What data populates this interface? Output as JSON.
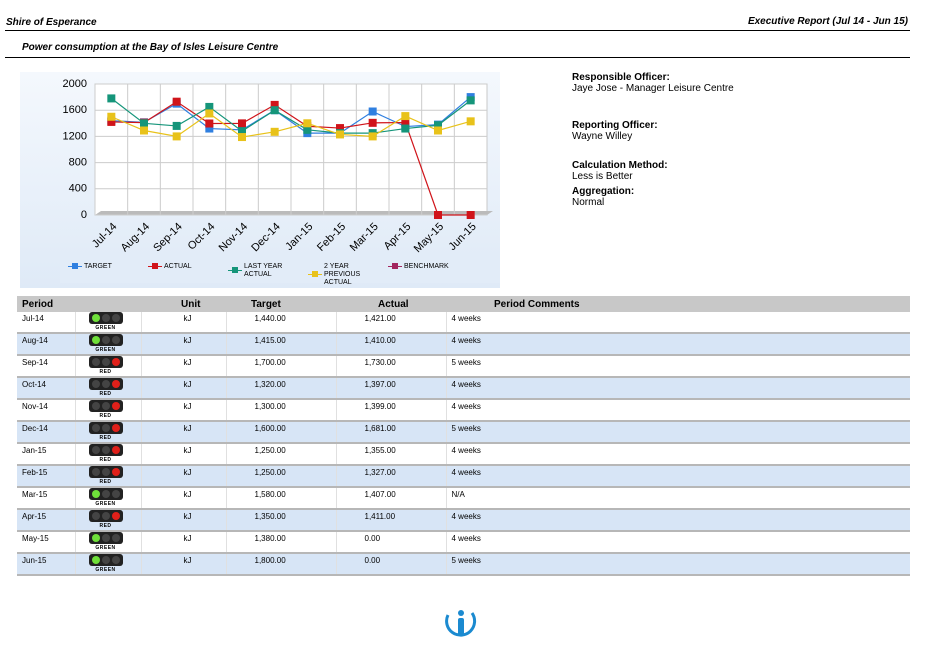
{
  "header": {
    "left": "Shire of Esperance",
    "right": "Executive Report (Jul 14 - Jun 15)",
    "subtitle": "Power consumption at the Bay of Isles Leisure Centre"
  },
  "chart_data": {
    "type": "line",
    "categories": [
      "Jul-14",
      "Aug-14",
      "Sep-14",
      "Oct-14",
      "Nov-14",
      "Dec-14",
      "Jan-15",
      "Feb-15",
      "Mar-15",
      "Apr-15",
      "May-15",
      "Jun-15"
    ],
    "series": [
      {
        "name": "TARGET",
        "color": "#2f7fe0",
        "values": [
          1440,
          1415,
          1700,
          1320,
          1300,
          1600,
          1250,
          1250,
          1580,
          1350,
          1380,
          1800
        ]
      },
      {
        "name": "ACTUAL",
        "color": "#d0141a",
        "values": [
          1421,
          1410,
          1730,
          1397,
          1399,
          1681,
          1355,
          1327,
          1407,
          1411,
          0,
          0
        ]
      },
      {
        "name": "LAST YEAR ACTUAL",
        "color": "#15957a",
        "values": [
          1780,
          1400,
          1360,
          1650,
          1280,
          1600,
          1300,
          1250,
          1250,
          1320,
          1370,
          1750
        ]
      },
      {
        "name": "2 YEAR PREVIOUS ACTUAL",
        "color": "#e8c21a",
        "values": [
          1500,
          1290,
          1200,
          1550,
          1190,
          1270,
          1400,
          1230,
          1200,
          1510,
          1290,
          1430
        ]
      },
      {
        "name": "BENCHMARK",
        "color": "#a3265f",
        "values": [
          null,
          null,
          null,
          null,
          null,
          null,
          null,
          null,
          null,
          null,
          null,
          null
        ]
      }
    ],
    "ylim": [
      0,
      2000
    ],
    "yticks": [
      0,
      400,
      800,
      1200,
      1600,
      2000
    ],
    "grid": true,
    "legend": "bottom"
  },
  "info": [
    {
      "label": "Responsible Officer:",
      "value": "Jaye Jose - Manager Leisure Centre"
    },
    {
      "label": "Reporting Officer:",
      "value": "Wayne Willey"
    },
    {
      "label": "Calculation Method:",
      "value": "Less is Better"
    },
    {
      "label": "Aggregation:",
      "value": "Normal"
    }
  ],
  "table": {
    "headers": [
      "Period",
      "Unit",
      "Target",
      "Actual",
      "Period Comments"
    ],
    "rows": [
      [
        "Jul-14",
        "GREEN",
        "kJ",
        "1,440.00",
        "1,421.00",
        "4 weeks"
      ],
      [
        "Aug-14",
        "GREEN",
        "kJ",
        "1,415.00",
        "1,410.00",
        "4 weeks"
      ],
      [
        "Sep-14",
        "RED",
        "kJ",
        "1,700.00",
        "1,730.00",
        "5 weeks"
      ],
      [
        "Oct-14",
        "RED",
        "kJ",
        "1,320.00",
        "1,397.00",
        "4 weeks"
      ],
      [
        "Nov-14",
        "RED",
        "kJ",
        "1,300.00",
        "1,399.00",
        "4 weeks"
      ],
      [
        "Dec-14",
        "RED",
        "kJ",
        "1,600.00",
        "1,681.00",
        "5 weeks"
      ],
      [
        "Jan-15",
        "RED",
        "kJ",
        "1,250.00",
        "1,355.00",
        "4 weeks"
      ],
      [
        "Feb-15",
        "RED",
        "kJ",
        "1,250.00",
        "1,327.00",
        "4 weeks"
      ],
      [
        "Mar-15",
        "GREEN",
        "kJ",
        "1,580.00",
        "1,407.00",
        "N/A"
      ],
      [
        "Apr-15",
        "RED",
        "kJ",
        "1,350.00",
        "1,411.00",
        "4 weeks"
      ],
      [
        "May-15",
        "GREEN",
        "kJ",
        "1,380.00",
        "0.00",
        "4 weeks"
      ],
      [
        "Jun-15",
        "GREEN",
        "kJ",
        "1,800.00",
        "0.00",
        "5 weeks"
      ]
    ]
  }
}
